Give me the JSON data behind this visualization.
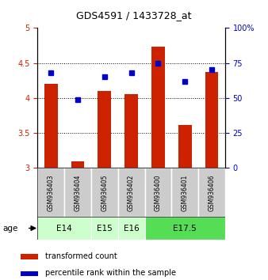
{
  "title": "GDS4591 / 1433728_at",
  "samples": [
    "GSM936403",
    "GSM936404",
    "GSM936405",
    "GSM936402",
    "GSM936400",
    "GSM936401",
    "GSM936406"
  ],
  "transformed_counts": [
    4.2,
    3.1,
    4.1,
    4.05,
    4.73,
    3.62,
    4.37
  ],
  "percentile_ranks": [
    68,
    49,
    65,
    68,
    75,
    62,
    70
  ],
  "group_info": [
    {
      "label": "E14",
      "start": 0,
      "end": 1,
      "color": "#ccffcc"
    },
    {
      "label": "E15",
      "start": 2,
      "end": 2,
      "color": "#ccffcc"
    },
    {
      "label": "E16",
      "start": 3,
      "end": 3,
      "color": "#ccffcc"
    },
    {
      "label": "E17.5",
      "start": 4,
      "end": 6,
      "color": "#55dd55"
    }
  ],
  "ylim_left": [
    3,
    5
  ],
  "ylim_right": [
    0,
    100
  ],
  "yticks_left": [
    3,
    3.5,
    4,
    4.5,
    5
  ],
  "yticks_right": [
    0,
    25,
    50,
    75,
    100
  ],
  "bar_color": "#cc2200",
  "dot_color": "#0000cc",
  "bar_bottom": 3.0,
  "sample_bg_color": "#cccccc",
  "legend_bar_label": "transformed count",
  "legend_dot_label": "percentile rank within the sample"
}
